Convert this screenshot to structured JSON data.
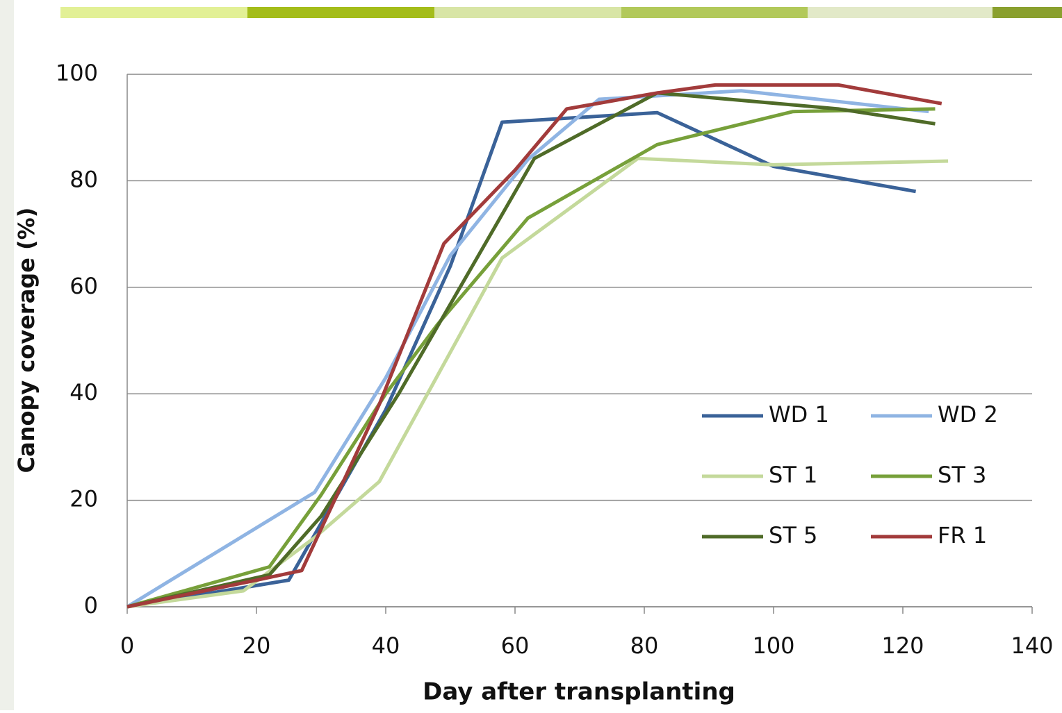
{
  "chart_data": {
    "type": "line",
    "x_label": "Day after transplanting",
    "y_label": "Canopy coverage (%)",
    "xlim": [
      0,
      140
    ],
    "xticks": [
      0,
      20,
      40,
      60,
      80,
      100,
      120,
      140
    ],
    "ylim": [
      0,
      100
    ],
    "yticks": [
      0,
      20,
      40,
      60,
      80,
      100
    ],
    "grid": true,
    "legend": "lower right",
    "series": [
      {
        "name": "WD 1",
        "color": "#3a6298",
        "x": [
          0,
          25,
          40,
          50,
          58,
          82,
          100,
          122
        ],
        "values": [
          0,
          5,
          37,
          64,
          91,
          92.8,
          82.7,
          78
        ]
      },
      {
        "name": "WD 2",
        "color": "#8fb4e3",
        "x": [
          0,
          29,
          40,
          50,
          62,
          73,
          95,
          124
        ],
        "values": [
          0,
          21.5,
          43,
          66,
          84,
          95.3,
          96.9,
          93
        ]
      },
      {
        "name": "ST 1",
        "color": "#c4d99b",
        "x": [
          0,
          18,
          29,
          39,
          58,
          79,
          100,
          127
        ],
        "values": [
          0,
          3,
          13,
          23.5,
          65.5,
          84.2,
          83,
          83.7
        ]
      },
      {
        "name": "ST 3",
        "color": "#77a03a",
        "x": [
          0,
          22,
          30,
          40,
          48,
          62,
          82,
          103,
          125
        ],
        "values": [
          0,
          7.5,
          21,
          40,
          53,
          73,
          86.8,
          93,
          93.5
        ]
      },
      {
        "name": "ST 5",
        "color": "#4f6b28",
        "x": [
          0,
          22,
          30,
          42,
          63,
          82,
          110,
          125
        ],
        "values": [
          0,
          6,
          17,
          40,
          84.2,
          96.5,
          93.5,
          90.7
        ]
      },
      {
        "name": "FR 1",
        "color": "#a23b3b",
        "x": [
          0,
          20,
          27,
          39,
          49,
          60,
          68,
          82,
          91,
          110,
          126
        ],
        "values": [
          0,
          5,
          6.8,
          38,
          68.2,
          82,
          93.5,
          96.5,
          98,
          98,
          94.5
        ]
      }
    ]
  }
}
